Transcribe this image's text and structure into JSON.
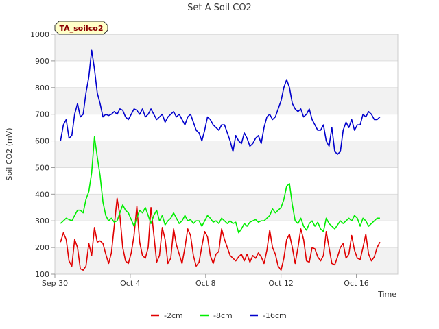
{
  "chart_data": {
    "type": "line",
    "title": "Set A Soil CO2",
    "xlabel": "Time",
    "ylabel": "Soil CO2 (mV)",
    "tag": "TA_soilco2",
    "x_unit": "days since Sep 30",
    "xlim": [
      0,
      18.2
    ],
    "ylim": [
      100,
      1000
    ],
    "y_ticks": [
      100,
      200,
      300,
      400,
      500,
      600,
      700,
      800,
      900,
      1000
    ],
    "x_ticks": [
      {
        "label": "Sep 30",
        "value": 0
      },
      {
        "label": "Oct 4",
        "value": 4
      },
      {
        "label": "Oct 8",
        "value": 8
      },
      {
        "label": "Oct 12",
        "value": 12
      },
      {
        "label": "Oct 16",
        "value": 16
      }
    ],
    "grid": true,
    "legend_position": "bottom-center",
    "x": [
      0.3,
      0.45,
      0.6,
      0.75,
      0.9,
      1.05,
      1.2,
      1.35,
      1.5,
      1.65,
      1.8,
      1.95,
      2.1,
      2.25,
      2.4,
      2.55,
      2.7,
      2.85,
      3.0,
      3.15,
      3.3,
      3.45,
      3.6,
      3.75,
      3.9,
      4.05,
      4.2,
      4.35,
      4.5,
      4.65,
      4.8,
      4.95,
      5.1,
      5.25,
      5.4,
      5.55,
      5.7,
      5.85,
      6.0,
      6.15,
      6.3,
      6.45,
      6.6,
      6.75,
      6.9,
      7.05,
      7.2,
      7.35,
      7.5,
      7.65,
      7.8,
      7.95,
      8.1,
      8.25,
      8.4,
      8.55,
      8.7,
      8.85,
      9.0,
      9.15,
      9.3,
      9.45,
      9.6,
      9.75,
      9.9,
      10.05,
      10.2,
      10.35,
      10.5,
      10.65,
      10.8,
      10.95,
      11.1,
      11.25,
      11.4,
      11.55,
      11.7,
      11.85,
      12.0,
      12.15,
      12.3,
      12.45,
      12.6,
      12.75,
      12.9,
      13.05,
      13.2,
      13.35,
      13.5,
      13.65,
      13.8,
      13.95,
      14.1,
      14.25,
      14.4,
      14.55,
      14.7,
      14.85,
      15.0,
      15.15,
      15.3,
      15.45,
      15.6,
      15.75,
      15.9,
      16.05,
      16.2,
      16.35,
      16.5,
      16.65,
      16.8,
      16.95,
      17.1,
      17.25
    ],
    "series": [
      {
        "name": "-2cm",
        "color": "#e00000",
        "values": [
          220,
          255,
          230,
          150,
          130,
          230,
          200,
          120,
          115,
          130,
          215,
          170,
          275,
          220,
          225,
          215,
          175,
          140,
          180,
          280,
          385,
          320,
          200,
          150,
          140,
          180,
          245,
          355,
          220,
          170,
          160,
          200,
          350,
          250,
          145,
          170,
          275,
          230,
          140,
          160,
          270,
          210,
          175,
          140,
          200,
          270,
          245,
          170,
          130,
          145,
          205,
          260,
          240,
          170,
          140,
          175,
          185,
          270,
          230,
          200,
          170,
          160,
          150,
          165,
          175,
          150,
          175,
          145,
          170,
          160,
          180,
          165,
          140,
          190,
          265,
          200,
          175,
          130,
          115,
          160,
          230,
          250,
          200,
          140,
          200,
          270,
          230,
          150,
          145,
          200,
          195,
          165,
          150,
          170,
          260,
          200,
          140,
          135,
          165,
          200,
          215,
          160,
          175,
          245,
          190,
          160,
          155,
          200,
          250,
          175,
          150,
          165,
          200,
          220
        ]
      },
      {
        "name": "-8cm",
        "color": "#00ee00",
        "values": [
          290,
          300,
          310,
          305,
          300,
          320,
          340,
          340,
          330,
          380,
          410,
          480,
          615,
          540,
          470,
          370,
          320,
          300,
          310,
          295,
          300,
          330,
          360,
          340,
          330,
          305,
          280,
          310,
          340,
          330,
          350,
          320,
          290,
          320,
          340,
          300,
          320,
          285,
          300,
          310,
          330,
          310,
          290,
          300,
          320,
          300,
          305,
          290,
          300,
          300,
          280,
          300,
          320,
          310,
          295,
          300,
          290,
          310,
          300,
          290,
          300,
          290,
          295,
          255,
          270,
          290,
          280,
          295,
          300,
          305,
          295,
          300,
          300,
          310,
          320,
          345,
          330,
          340,
          350,
          380,
          430,
          440,
          360,
          300,
          290,
          310,
          280,
          265,
          290,
          300,
          280,
          295,
          270,
          260,
          310,
          290,
          280,
          270,
          285,
          300,
          290,
          300,
          310,
          300,
          320,
          310,
          280,
          310,
          300,
          280,
          290,
          300,
          310,
          310
        ]
      },
      {
        "name": "-16cm",
        "color": "#0000cc",
        "values": [
          600,
          660,
          680,
          610,
          620,
          700,
          740,
          690,
          700,
          780,
          840,
          940,
          870,
          780,
          740,
          690,
          700,
          695,
          700,
          710,
          700,
          720,
          715,
          690,
          680,
          700,
          720,
          715,
          700,
          720,
          690,
          700,
          720,
          700,
          680,
          690,
          700,
          670,
          690,
          700,
          710,
          690,
          700,
          680,
          660,
          690,
          700,
          670,
          640,
          630,
          600,
          640,
          690,
          680,
          660,
          650,
          640,
          660,
          660,
          630,
          600,
          560,
          620,
          600,
          590,
          630,
          610,
          580,
          590,
          610,
          620,
          590,
          650,
          690,
          700,
          680,
          690,
          720,
          750,
          800,
          830,
          800,
          740,
          720,
          710,
          720,
          690,
          700,
          720,
          680,
          660,
          640,
          640,
          660,
          600,
          580,
          650,
          560,
          550,
          560,
          640,
          670,
          650,
          680,
          640,
          660,
          660,
          700,
          690,
          710,
          700,
          680,
          680,
          690
        ]
      }
    ]
  }
}
